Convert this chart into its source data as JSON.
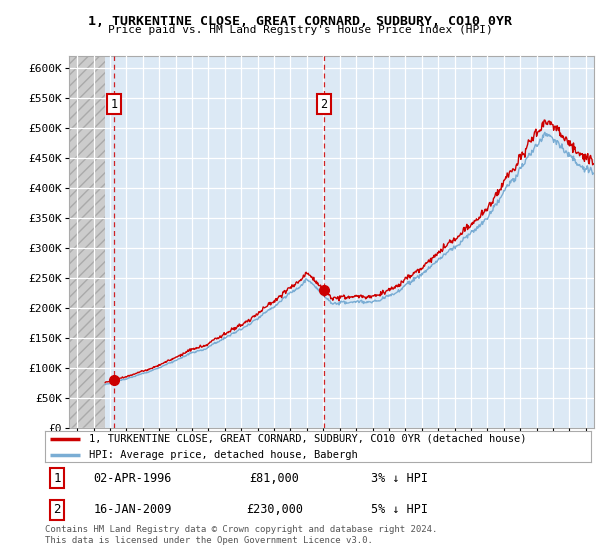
{
  "title": "1, TURKENTINE CLOSE, GREAT CORNARD, SUDBURY, CO10 0YR",
  "subtitle": "Price paid vs. HM Land Registry's House Price Index (HPI)",
  "legend_line1": "1, TURKENTINE CLOSE, GREAT CORNARD, SUDBURY, CO10 0YR (detached house)",
  "legend_line2": "HPI: Average price, detached house, Babergh",
  "annotation1_label": "1",
  "annotation1_date": "02-APR-1996",
  "annotation1_price": "£81,000",
  "annotation1_hpi": "3% ↓ HPI",
  "annotation2_label": "2",
  "annotation2_date": "16-JAN-2009",
  "annotation2_price": "£230,000",
  "annotation2_hpi": "5% ↓ HPI",
  "footer": "Contains HM Land Registry data © Crown copyright and database right 2024.\nThis data is licensed under the Open Government Licence v3.0.",
  "sale1_year": 1996.25,
  "sale1_price": 81000,
  "sale2_year": 2009.04,
  "sale2_price": 230000,
  "plot_bg_color": "#dce9f5",
  "red_line_color": "#cc0000",
  "blue_line_color": "#7aadd4",
  "grid_color": "#ffffff",
  "fig_bg_color": "#ffffff",
  "ylim": [
    0,
    620000
  ],
  "yticks": [
    0,
    50000,
    100000,
    150000,
    200000,
    250000,
    300000,
    350000,
    400000,
    450000,
    500000,
    550000,
    600000
  ],
  "ytick_labels": [
    "£0",
    "£50K",
    "£100K",
    "£150K",
    "£200K",
    "£250K",
    "£300K",
    "£350K",
    "£400K",
    "£450K",
    "£500K",
    "£550K",
    "£600K"
  ],
  "xlim_start": 1993.5,
  "xlim_end": 2025.5,
  "hatch_end": 1995.7,
  "xtick_start": 1994,
  "xtick_end": 2025
}
